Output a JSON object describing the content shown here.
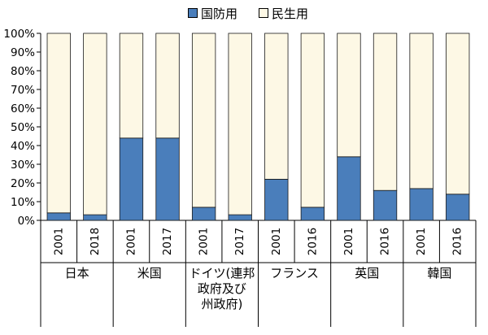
{
  "legend": {
    "defense_label": "国防用",
    "civil_label": "民生用"
  },
  "colors": {
    "defense": "#4a7ebb",
    "civil": "#fdf8e5",
    "axis": "#000000",
    "bar_stroke": "#1a1a1a"
  },
  "chart_data": {
    "type": "bar",
    "stacked": true,
    "ylim": [
      0,
      100
    ],
    "yticks": [
      "0%",
      "10%",
      "20%",
      "30%",
      "40%",
      "50%",
      "60%",
      "70%",
      "80%",
      "90%",
      "100%"
    ],
    "groups": [
      {
        "label_lines": [
          "日本"
        ],
        "years": [
          "2001",
          "2018"
        ]
      },
      {
        "label_lines": [
          "米国"
        ],
        "years": [
          "2001",
          "2017"
        ]
      },
      {
        "label_lines": [
          "ドイツ(連邦",
          "政府及び",
          "州政府)"
        ],
        "years": [
          "2001",
          "2017"
        ]
      },
      {
        "label_lines": [
          "フランス"
        ],
        "years": [
          "2001",
          "2016"
        ]
      },
      {
        "label_lines": [
          "英国"
        ],
        "years": [
          "2001",
          "2016"
        ]
      },
      {
        "label_lines": [
          "韓国"
        ],
        "years": [
          "2001",
          "2016"
        ]
      }
    ],
    "series": [
      {
        "name": "国防用",
        "values": [
          4,
          3,
          44,
          44,
          7,
          3,
          22,
          7,
          34,
          16,
          17,
          14
        ]
      },
      {
        "name": "民生用",
        "values": [
          96,
          97,
          56,
          56,
          93,
          97,
          78,
          93,
          66,
          84,
          83,
          86
        ]
      }
    ]
  }
}
